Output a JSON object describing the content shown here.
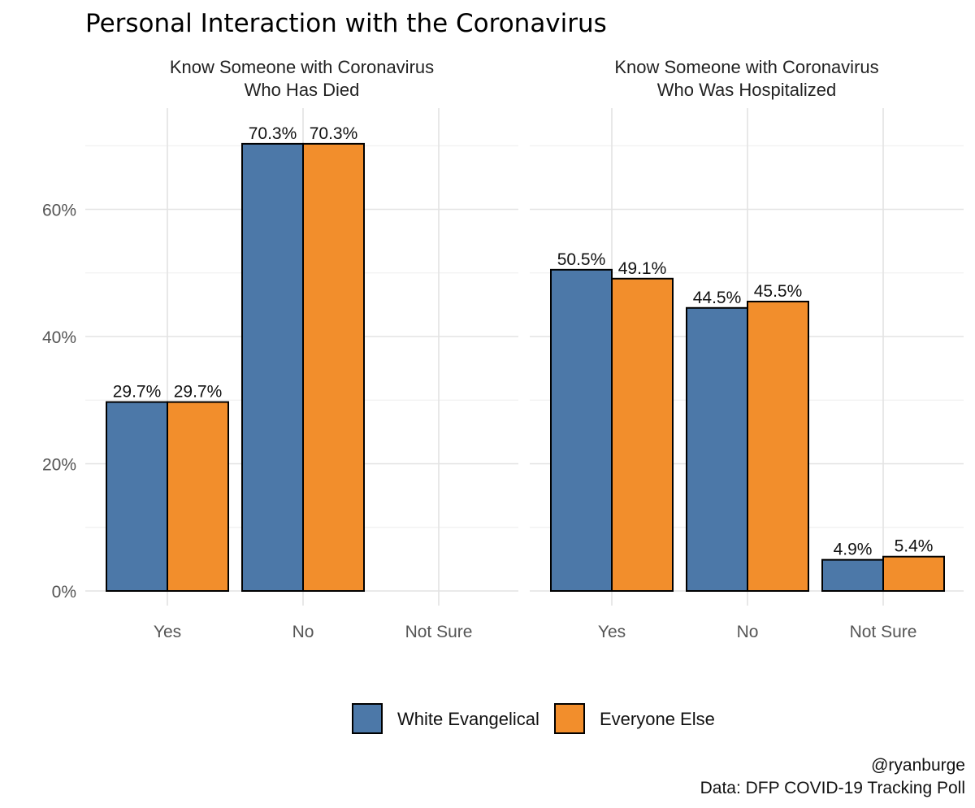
{
  "title": "Personal Interaction with the Coronavirus",
  "caption": [
    "@ryanburge",
    "Data: DFP COVID-19 Tracking Poll"
  ],
  "colors": {
    "White Evangelical": "#4c78a8",
    "Everyone Else": "#f28e2c"
  },
  "chart_data": {
    "type": "bar",
    "ylim": [
      0,
      75
    ],
    "yticks": [
      0,
      20,
      40,
      60
    ],
    "ytick_labels": [
      "0%",
      "20%",
      "40%",
      "60%"
    ],
    "grid": true,
    "legend": {
      "position": "bottom",
      "entries": [
        "White Evangelical",
        "Everyone Else"
      ]
    },
    "panels": [
      {
        "title": [
          "Know Someone with Coronavirus",
          "Who Has Died"
        ],
        "categories": [
          "Yes",
          "No",
          "Not Sure"
        ],
        "series": [
          {
            "name": "White Evangelical",
            "values": [
              29.7,
              70.3,
              null
            ],
            "labels": [
              "29.7%",
              "70.3%",
              null
            ]
          },
          {
            "name": "Everyone Else",
            "values": [
              29.7,
              70.3,
              null
            ],
            "labels": [
              "29.7%",
              "70.3%",
              null
            ]
          }
        ]
      },
      {
        "title": [
          "Know Someone with Coronavirus",
          "Who Was Hospitalized"
        ],
        "categories": [
          "Yes",
          "No",
          "Not Sure"
        ],
        "series": [
          {
            "name": "White Evangelical",
            "values": [
              50.5,
              44.5,
              4.9
            ],
            "labels": [
              "50.5%",
              "44.5%",
              "4.9%"
            ]
          },
          {
            "name": "Everyone Else",
            "values": [
              49.1,
              45.5,
              5.4
            ],
            "labels": [
              "49.1%",
              "45.5%",
              "5.4%"
            ]
          }
        ]
      }
    ]
  }
}
